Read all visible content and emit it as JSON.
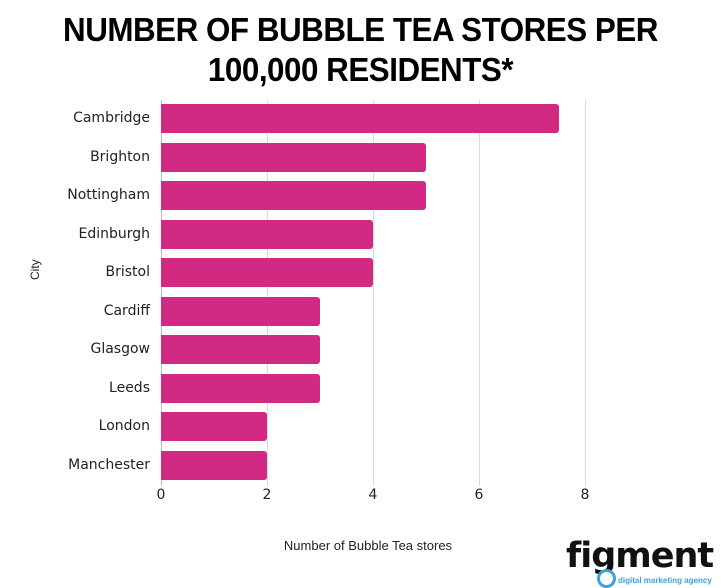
{
  "title_line1": "NUMBER OF BUBBLE TEA STORES PER",
  "title_line2": "100,000 RESIDENTS*",
  "chart_data": {
    "type": "bar",
    "orientation": "horizontal",
    "title": "NUMBER OF BUBBLE TEA STORES PER 100,000 RESIDENTS*",
    "categories": [
      "Cambridge",
      "Brighton",
      "Nottingham",
      "Edinburgh",
      "Bristol",
      "Cardiff",
      "Glasgow",
      "Leeds",
      "London",
      "Manchester"
    ],
    "values": [
      7.5,
      5,
      5,
      4,
      4,
      3,
      3,
      3,
      2,
      2
    ],
    "xlabel": "Number of Bubble Tea stores",
    "ylabel": "City",
    "xlim": [
      0,
      8
    ],
    "xticks": [
      "0",
      "2",
      "4",
      "6",
      "8"
    ],
    "grid": true,
    "bar_color": "#d22a83"
  },
  "logo": {
    "name": "figment",
    "tagline": "digital marketing agency",
    "accent": "#3aa3dd"
  }
}
